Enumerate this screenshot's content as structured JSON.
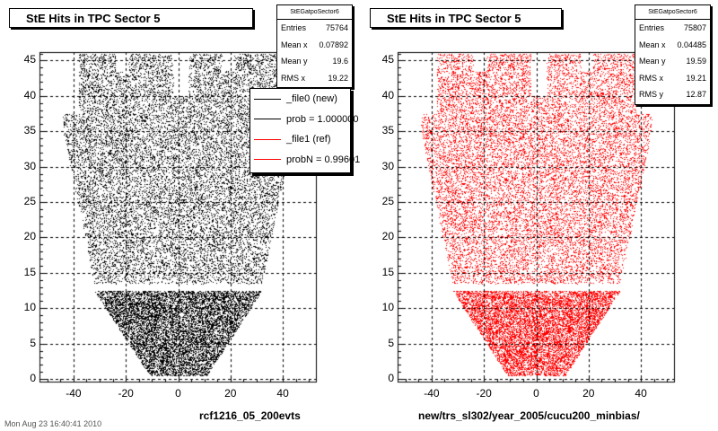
{
  "footer": "Mon Aug 23 16:40:41 2010",
  "chart_data": [
    {
      "type": "scatter",
      "title": "StE Hits in TPC Sector 5",
      "xlabel": "rcf1216_05_200evts",
      "ylabel": "",
      "xlim": [
        -53,
        53
      ],
      "ylim": [
        -0.5,
        46.2
      ],
      "xticks": [
        -40,
        -20,
        0,
        20,
        40
      ],
      "yticks": [
        0,
        5,
        10,
        15,
        20,
        25,
        30,
        35,
        40,
        45
      ],
      "grid": true,
      "color": "#000000",
      "stats": {
        "name": "StEGatpoSector6",
        "rows": [
          {
            "label": "Entries",
            "value": "75764"
          },
          {
            "label": "Mean x",
            "value": "0.07892"
          },
          {
            "label": "Mean y",
            "value": "19.6"
          },
          {
            "label": "RMS x",
            "value": "19.22"
          }
        ]
      },
      "legend": {
        "placement": "top-right",
        "entries": [
          {
            "label": "_file0 (new)",
            "color": "#000000"
          },
          {
            "label": "prob = 1.000000",
            "color": "#000000"
          },
          {
            "label": "_file1 (ref)",
            "color": "#ff0000"
          },
          {
            "label": "probN = 0.99601",
            "color": "#ff0000"
          }
        ]
      }
    },
    {
      "type": "scatter",
      "title": "StE Hits in TPC Sector 5",
      "xlabel": "new/trs_sl302/year_2005/cucu200_minbias/",
      "ylabel": "",
      "xlim": [
        -53,
        53
      ],
      "ylim": [
        -0.5,
        46.2
      ],
      "xticks": [
        -40,
        -20,
        0,
        20,
        40
      ],
      "yticks": [
        0,
        5,
        10,
        15,
        20,
        25,
        30,
        35,
        40,
        45
      ],
      "grid": true,
      "color": "#ff0000",
      "stats": {
        "name": "StEGatpoSector6",
        "rows": [
          {
            "label": "Entries",
            "value": "75807"
          },
          {
            "label": "Mean x",
            "value": "0.04485"
          },
          {
            "label": "Mean y",
            "value": "19.59"
          },
          {
            "label": "RMS x",
            "value": "19.21"
          },
          {
            "label": "RMS y",
            "value": "12.87"
          }
        ]
      }
    }
  ]
}
